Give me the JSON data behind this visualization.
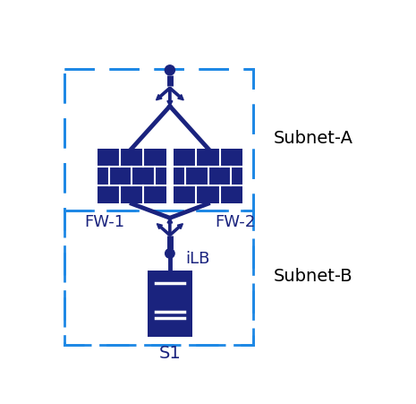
{
  "bg_color": "#ffffff",
  "dark_blue": "#1a237e",
  "dashed_blue": "#1e88e5",
  "label_blue": "#1a237e",
  "subnet_a_label": "Subnet-A",
  "subnet_b_label": "Subnet-B",
  "fw1_label": "FW-1",
  "fw2_label": "FW-2",
  "ilb_label": "iLB",
  "s1_label": "S1",
  "figw": 4.65,
  "figh": 4.51,
  "dpi": 100
}
